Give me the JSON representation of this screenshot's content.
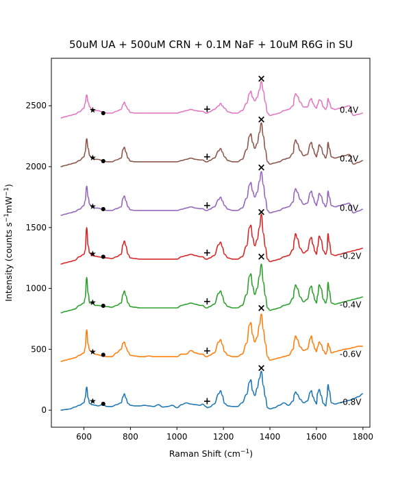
{
  "chart_data": {
    "type": "line",
    "title": "50uM UA + 500uM CRN + 0.1M NaF + 10uM R6G in SU",
    "xlabel": "Raman Shift (cm",
    "xlabel_sup": "−1",
    "xlabel_end": ")",
    "ylabel": "Intensity (counts s",
    "ylabel_sup1": "−1",
    "ylabel_mid": "mW",
    "ylabel_sup2": "−1",
    "ylabel_end": ")",
    "xlim": [
      460,
      1830
    ],
    "ylim": [
      -140,
      2890
    ],
    "xticks": [
      600,
      800,
      1000,
      1200,
      1400,
      1600,
      1800
    ],
    "yticks": [
      0,
      500,
      1000,
      1500,
      2000,
      2500
    ],
    "grid": false,
    "series": [
      {
        "name": "-0.8V",
        "color": "#1f77b4",
        "offset": 0
      },
      {
        "name": "-0.6V",
        "color": "#ff7f0e",
        "offset": 400
      },
      {
        "name": "-0.4V",
        "color": "#2ca02c",
        "offset": 800
      },
      {
        "name": "-0.2V",
        "color": "#d62728",
        "offset": 1200
      },
      {
        "name": "0.0V",
        "color": "#9467bd",
        "offset": 1600
      },
      {
        "name": "0.2V",
        "color": "#8c564b",
        "offset": 2000
      },
      {
        "name": "0.4V",
        "color": "#e377c2",
        "offset": 2400
      }
    ],
    "spectrum_x": [
      500,
      520,
      540,
      560,
      580,
      600,
      605,
      612,
      618,
      625,
      635,
      650,
      660,
      680,
      700,
      720,
      740,
      760,
      768,
      774,
      780,
      790,
      800,
      820,
      840,
      860,
      880,
      900,
      920,
      940,
      960,
      980,
      1000,
      1020,
      1040,
      1060,
      1080,
      1100,
      1110,
      1125,
      1130,
      1140,
      1160,
      1180,
      1188,
      1195,
      1205,
      1220,
      1240,
      1260,
      1280,
      1300,
      1312,
      1318,
      1325,
      1335,
      1345,
      1355,
      1363,
      1372,
      1380,
      1390,
      1400,
      1420,
      1440,
      1460,
      1480,
      1500,
      1505,
      1510,
      1518,
      1530,
      1545,
      1560,
      1575,
      1578,
      1585,
      1595,
      1600,
      1605,
      1612,
      1620,
      1630,
      1640,
      1645,
      1650,
      1655,
      1665,
      1680,
      1700,
      1720,
      1740,
      1760,
      1780,
      1800
    ],
    "spectra": [
      [
        0,
        5,
        10,
        25,
        40,
        60,
        100,
        190,
        100,
        55,
        45,
        40,
        35,
        45,
        30,
        30,
        45,
        60,
        110,
        135,
        100,
        55,
        40,
        35,
        35,
        40,
        35,
        30,
        45,
        25,
        30,
        40,
        20,
        45,
        60,
        50,
        45,
        40,
        50,
        30,
        20,
        25,
        50,
        135,
        160,
        120,
        55,
        35,
        30,
        30,
        60,
        130,
        230,
        250,
        160,
        120,
        180,
        260,
        320,
        200,
        110,
        20,
        10,
        20,
        40,
        60,
        40,
        75,
        130,
        150,
        130,
        90,
        60,
        75,
        150,
        160,
        110,
        70,
        50,
        140,
        170,
        120,
        55,
        35,
        100,
        210,
        160,
        60,
        50,
        60,
        70,
        80,
        95,
        110,
        135
      ],
      [
        0,
        10,
        20,
        30,
        50,
        70,
        110,
        260,
        140,
        90,
        75,
        60,
        55,
        45,
        40,
        40,
        70,
        100,
        150,
        160,
        120,
        80,
        50,
        45,
        40,
        40,
        45,
        40,
        40,
        40,
        40,
        40,
        40,
        60,
        60,
        90,
        70,
        60,
        60,
        40,
        40,
        50,
        70,
        160,
        180,
        140,
        80,
        50,
        40,
        40,
        60,
        150,
        300,
        320,
        220,
        160,
        200,
        300,
        390,
        260,
        150,
        40,
        10,
        20,
        30,
        40,
        50,
        100,
        170,
        210,
        180,
        120,
        90,
        100,
        190,
        210,
        150,
        100,
        80,
        120,
        160,
        140,
        90,
        60,
        80,
        150,
        120,
        70,
        80,
        90,
        100,
        105,
        115,
        125,
        125
      ],
      [
        0,
        10,
        20,
        30,
        60,
        80,
        120,
        290,
        160,
        80,
        80,
        60,
        60,
        55,
        50,
        45,
        60,
        80,
        150,
        180,
        140,
        80,
        50,
        45,
        40,
        40,
        40,
        40,
        40,
        40,
        40,
        40,
        40,
        60,
        70,
        80,
        70,
        60,
        60,
        40,
        40,
        50,
        70,
        160,
        180,
        140,
        80,
        50,
        40,
        40,
        60,
        150,
        300,
        320,
        220,
        150,
        200,
        300,
        400,
        250,
        140,
        40,
        20,
        30,
        40,
        60,
        70,
        120,
        190,
        230,
        200,
        130,
        90,
        110,
        210,
        220,
        160,
        100,
        80,
        140,
        230,
        200,
        110,
        80,
        110,
        250,
        180,
        80,
        70,
        80,
        90,
        100,
        110,
        120,
        130
      ],
      [
        0,
        10,
        20,
        30,
        60,
        80,
        110,
        300,
        150,
        90,
        70,
        65,
        60,
        55,
        50,
        45,
        60,
        80,
        160,
        190,
        150,
        80,
        50,
        45,
        40,
        40,
        40,
        40,
        40,
        40,
        40,
        40,
        40,
        60,
        70,
        80,
        70,
        60,
        60,
        40,
        40,
        50,
        70,
        160,
        180,
        140,
        80,
        50,
        40,
        40,
        60,
        150,
        300,
        320,
        220,
        150,
        200,
        300,
        410,
        250,
        140,
        40,
        20,
        30,
        40,
        60,
        70,
        120,
        200,
        250,
        210,
        130,
        90,
        110,
        210,
        220,
        160,
        100,
        80,
        140,
        230,
        200,
        110,
        80,
        110,
        250,
        180,
        80,
        70,
        80,
        90,
        100,
        110,
        120,
        130
      ],
      [
        0,
        10,
        20,
        30,
        50,
        80,
        120,
        240,
        150,
        90,
        70,
        60,
        60,
        50,
        40,
        40,
        55,
        70,
        140,
        160,
        120,
        70,
        45,
        40,
        40,
        40,
        40,
        40,
        40,
        40,
        40,
        40,
        40,
        50,
        60,
        70,
        60,
        55,
        55,
        40,
        40,
        50,
        70,
        130,
        150,
        120,
        80,
        50,
        40,
        40,
        60,
        140,
        250,
        270,
        200,
        150,
        190,
        280,
        360,
        250,
        140,
        40,
        20,
        30,
        40,
        60,
        70,
        110,
        190,
        220,
        190,
        130,
        90,
        100,
        190,
        200,
        150,
        100,
        80,
        120,
        180,
        160,
        100,
        70,
        100,
        200,
        150,
        80,
        70,
        80,
        90,
        100,
        20,
        35,
        50
      ],
      [
        0,
        10,
        20,
        30,
        50,
        80,
        120,
        230,
        150,
        90,
        70,
        60,
        60,
        50,
        40,
        40,
        55,
        70,
        140,
        160,
        120,
        70,
        45,
        40,
        40,
        40,
        40,
        40,
        40,
        40,
        40,
        40,
        40,
        50,
        60,
        70,
        60,
        55,
        55,
        40,
        40,
        50,
        70,
        130,
        150,
        120,
        80,
        50,
        40,
        40,
        60,
        140,
        250,
        270,
        200,
        150,
        190,
        280,
        360,
        250,
        140,
        40,
        20,
        30,
        40,
        60,
        70,
        110,
        190,
        220,
        190,
        130,
        90,
        100,
        190,
        200,
        150,
        100,
        80,
        120,
        180,
        160,
        100,
        70,
        100,
        200,
        150,
        80,
        70,
        80,
        90,
        100,
        20,
        35,
        50
      ],
      [
        0,
        10,
        20,
        30,
        50,
        80,
        120,
        190,
        130,
        90,
        70,
        60,
        60,
        50,
        40,
        40,
        55,
        70,
        110,
        130,
        100,
        70,
        45,
        40,
        40,
        40,
        40,
        40,
        40,
        40,
        40,
        40,
        40,
        50,
        60,
        70,
        60,
        55,
        55,
        40,
        40,
        50,
        70,
        100,
        120,
        100,
        80,
        50,
        40,
        40,
        60,
        120,
        200,
        220,
        170,
        140,
        170,
        230,
        300,
        220,
        130,
        40,
        20,
        30,
        40,
        60,
        70,
        100,
        170,
        200,
        180,
        130,
        90,
        90,
        150,
        160,
        120,
        90,
        80,
        110,
        150,
        140,
        90,
        70,
        90,
        160,
        130,
        80,
        70,
        80,
        90,
        100,
        20,
        30,
        40
      ]
    ],
    "markers": {
      "cross": {
        "symbol": "×",
        "x": 1363,
        "heights": [
          350,
          840,
          1265,
          1630,
          1995,
          2390,
          2725
        ]
      },
      "plus": {
        "symbol": "+",
        "x": 1130,
        "heights": [
          75,
          490,
          895,
          1295,
          1685,
          2085,
          2475
        ]
      },
      "star": {
        "symbol": "★",
        "x": 638,
        "heights": [
          75,
          480,
          885,
          1285,
          1675,
          2075,
          2465
        ]
      },
      "dot": {
        "symbol": "●",
        "x": 683,
        "heights": [
          55,
          460,
          860,
          1265,
          1655,
          2050,
          2445
        ]
      }
    },
    "label_x": 1700,
    "labels": [
      {
        "text": "-0.8V",
        "y": 65
      },
      {
        "text": "-0.6V",
        "y": 460
      },
      {
        "text": "-0.4V",
        "y": 865
      },
      {
        "text": "-0.2V",
        "y": 1265
      },
      {
        "text": "0.0V",
        "y": 1660
      },
      {
        "text": "0.2V",
        "y": 2065
      },
      {
        "text": "0.4V",
        "y": 2465
      }
    ]
  }
}
